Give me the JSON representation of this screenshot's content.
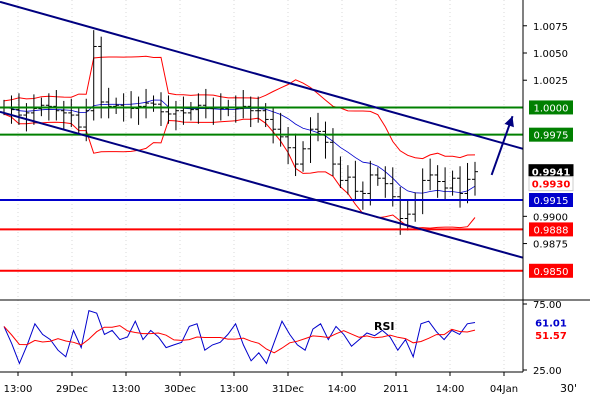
{
  "chart_data": [
    {
      "type": "line",
      "instrument_note": "",
      "ylim": [
        0.9825,
        1.0095
      ],
      "y_ticks": [
        "1.0075",
        "1.0050",
        "1.0025",
        "0.9900",
        "0.9875"
      ],
      "y_tick_values": [
        1.0075,
        1.005,
        1.0025,
        0.99,
        0.9875
      ],
      "x_tick_labels": [
        "13:00",
        "29Dec",
        "13:00",
        "30Dec",
        "13:00",
        "31Dec",
        "14:00",
        "2011",
        "14:00",
        "04Jan"
      ],
      "timeframe_label": "30'",
      "horizontal_levels": [
        {
          "value": 1.0,
          "label": "1.0000",
          "color": "#008000"
        },
        {
          "value": 0.9975,
          "label": "0.9975",
          "color": "#008000"
        },
        {
          "value": 0.9915,
          "label": "0.9915",
          "color": "#0000cc"
        },
        {
          "value": 0.9888,
          "label": "0.9888",
          "color": "#ff0000"
        },
        {
          "value": 0.985,
          "label": "0.9850",
          "color": "#ff0000"
        }
      ],
      "price_badges": [
        {
          "value": 0.9941,
          "label": "0.9941",
          "bg": "#000000",
          "fg": "#ffffff"
        },
        {
          "value": 0.993,
          "label": "0.9930",
          "bg": "#ffffff",
          "fg": "#ff0000"
        }
      ],
      "channel_lines": [
        {
          "name": "upper",
          "x": [
            0,
            1
          ],
          "y": [
            1.0097,
            0.9962
          ]
        },
        {
          "name": "lower",
          "x": [
            0,
            1
          ],
          "y": [
            0.9996,
            0.9862
          ]
        }
      ],
      "projection_arrow": {
        "x": [
          0.94,
          0.98
        ],
        "y": [
          0.9938,
          0.9992
        ]
      },
      "price_series": [
        1.0,
        0.9998,
        0.9993,
        0.9995,
        0.9999,
        1.0002,
        1.0001,
        0.9997,
        0.9995,
        0.9993,
        0.9982,
        0.9997,
        1.0056,
        1.0005,
        1.0001,
        1.0002,
        1.0,
        0.9999,
        1.0001,
        1.0004,
        1.0003,
        0.9996,
        0.9994,
        0.9997,
        0.9995,
        0.9998,
        1.0002,
        0.9999,
        1.0,
        0.9999,
        1.0,
        0.9999,
        1.0001,
        0.9997,
        0.9997,
        0.9989,
        0.998,
        0.9973,
        0.9963,
        0.9948,
        0.9962,
        0.998,
        0.9978,
        0.9968,
        0.9948,
        0.9933,
        0.9936,
        0.9923,
        0.9921,
        0.9938,
        0.9935,
        0.993,
        0.9918,
        0.9898,
        0.9902,
        0.9915,
        0.9933,
        0.9938,
        0.9932,
        0.9926,
        0.9935,
        0.9921,
        0.9934,
        0.9941
      ],
      "rsi": {
        "label": "RSI",
        "ylim": [
          25,
          75
        ],
        "y_ticks": [
          "75.00",
          "25.00"
        ],
        "badges": [
          {
            "value": 61.01,
            "label": "61.01",
            "bg": "#ffffff",
            "fg": "#0000cc"
          },
          {
            "value": 51.57,
            "label": "51.57",
            "bg": "#ffffff",
            "fg": "#ff0000"
          }
        ],
        "values": [
          58,
          45,
          30,
          44,
          60,
          52,
          48,
          40,
          35,
          55,
          42,
          70,
          68,
          52,
          55,
          48,
          50,
          62,
          48,
          55,
          50,
          42,
          44,
          46,
          58,
          60,
          40,
          44,
          46,
          52,
          60,
          44,
          32,
          38,
          30,
          46,
          62,
          52,
          44,
          40,
          56,
          60,
          48,
          58,
          52,
          43,
          48,
          53,
          51,
          55,
          50,
          40,
          48,
          35,
          60,
          62,
          54,
          48,
          55,
          52,
          60,
          61
        ]
      }
    }
  ]
}
